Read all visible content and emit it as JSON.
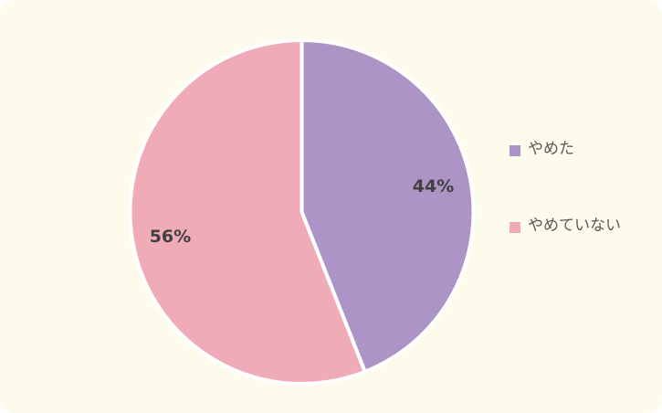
{
  "chart_data": {
    "type": "pie",
    "categories": [
      "やめた",
      "やめていない"
    ],
    "values": [
      44,
      56
    ],
    "value_labels": [
      "44%",
      "56%"
    ],
    "colors": [
      "#ad94c6",
      "#f0abb9"
    ],
    "legend": "right"
  }
}
